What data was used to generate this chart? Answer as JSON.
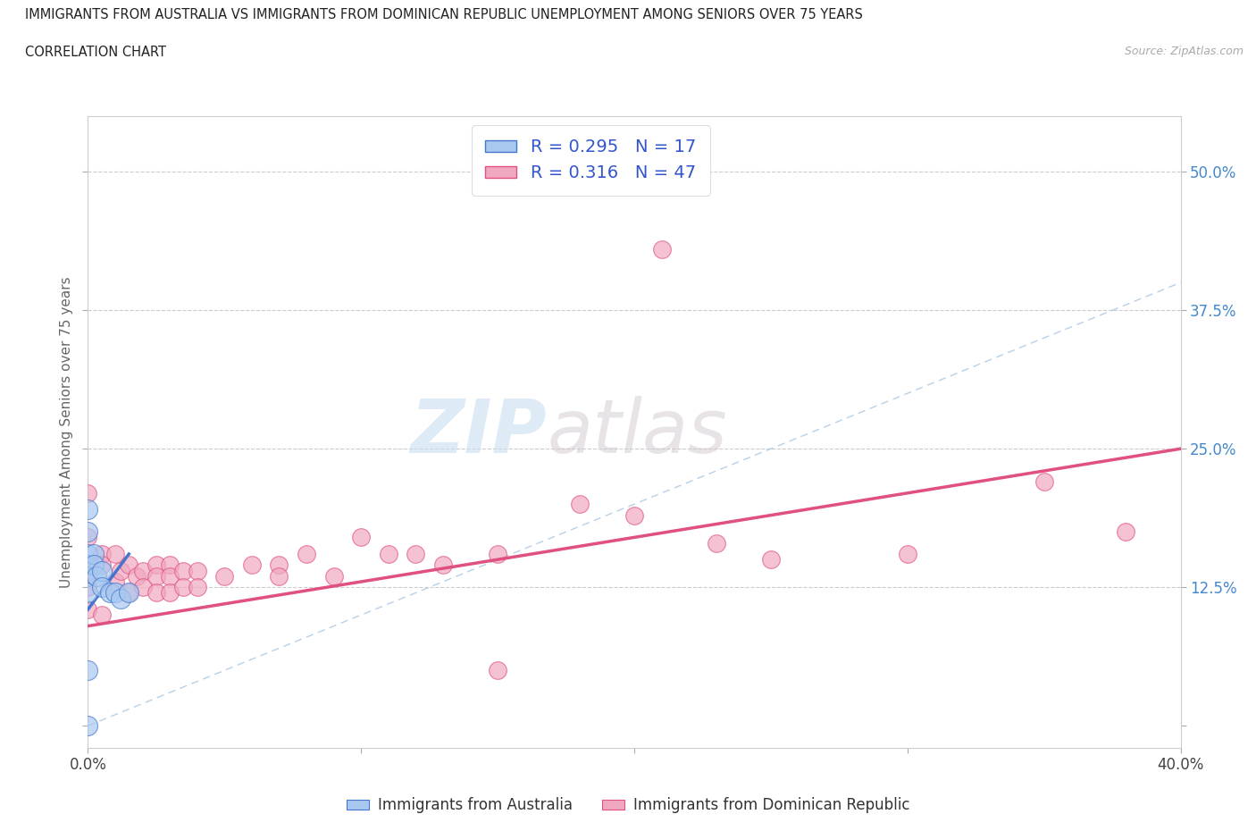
{
  "title_line1": "IMMIGRANTS FROM AUSTRALIA VS IMMIGRANTS FROM DOMINICAN REPUBLIC UNEMPLOYMENT AMONG SENIORS OVER 75 YEARS",
  "title_line2": "CORRELATION CHART",
  "source": "Source: ZipAtlas.com",
  "ylabel": "Unemployment Among Seniors over 75 years",
  "xlim": [
    0.0,
    0.4
  ],
  "ylim": [
    -0.02,
    0.55
  ],
  "color_australia": "#a8c8f0",
  "color_dominican": "#f0a8c0",
  "color_trendline_australia": "#4477cc",
  "color_trendline_dominican": "#e05080",
  "color_diagonal": "#9bbcdd",
  "watermark_zip": "ZIP",
  "watermark_atlas": "atlas",
  "legend_R_australia": "0.295",
  "legend_N_australia": "17",
  "legend_R_dominican": "0.316",
  "legend_N_dominican": "47",
  "aus_x": [
    0.0,
    0.0,
    0.0,
    0.0,
    0.0,
    0.0,
    0.0,
    0.002,
    0.002,
    0.003,
    0.005,
    0.005,
    0.008,
    0.01,
    0.012,
    0.015,
    0.0
  ],
  "aus_y": [
    0.195,
    0.175,
    0.155,
    0.145,
    0.135,
    0.12,
    0.05,
    0.155,
    0.145,
    0.135,
    0.14,
    0.125,
    0.12,
    0.12,
    0.115,
    0.12,
    0.0
  ],
  "dom_x": [
    0.0,
    0.0,
    0.0,
    0.0,
    0.0,
    0.0,
    0.005,
    0.005,
    0.005,
    0.01,
    0.01,
    0.012,
    0.015,
    0.015,
    0.018,
    0.02,
    0.02,
    0.025,
    0.025,
    0.025,
    0.03,
    0.03,
    0.03,
    0.035,
    0.035,
    0.04,
    0.04,
    0.05,
    0.06,
    0.07,
    0.07,
    0.08,
    0.09,
    0.1,
    0.11,
    0.12,
    0.13,
    0.15,
    0.15,
    0.18,
    0.2,
    0.21,
    0.23,
    0.25,
    0.3,
    0.35,
    0.38
  ],
  "dom_y": [
    0.21,
    0.17,
    0.145,
    0.135,
    0.125,
    0.105,
    0.155,
    0.145,
    0.1,
    0.155,
    0.13,
    0.14,
    0.145,
    0.12,
    0.135,
    0.14,
    0.125,
    0.145,
    0.135,
    0.12,
    0.145,
    0.135,
    0.12,
    0.14,
    0.125,
    0.14,
    0.125,
    0.135,
    0.145,
    0.145,
    0.135,
    0.155,
    0.135,
    0.17,
    0.155,
    0.155,
    0.145,
    0.05,
    0.155,
    0.2,
    0.19,
    0.43,
    0.165,
    0.15,
    0.155,
    0.22,
    0.175
  ],
  "aus_trend_x": [
    0.0,
    0.015
  ],
  "aus_trend_y": [
    0.105,
    0.155
  ],
  "dom_trend_x": [
    0.0,
    0.4
  ],
  "dom_trend_y": [
    0.09,
    0.25
  ]
}
